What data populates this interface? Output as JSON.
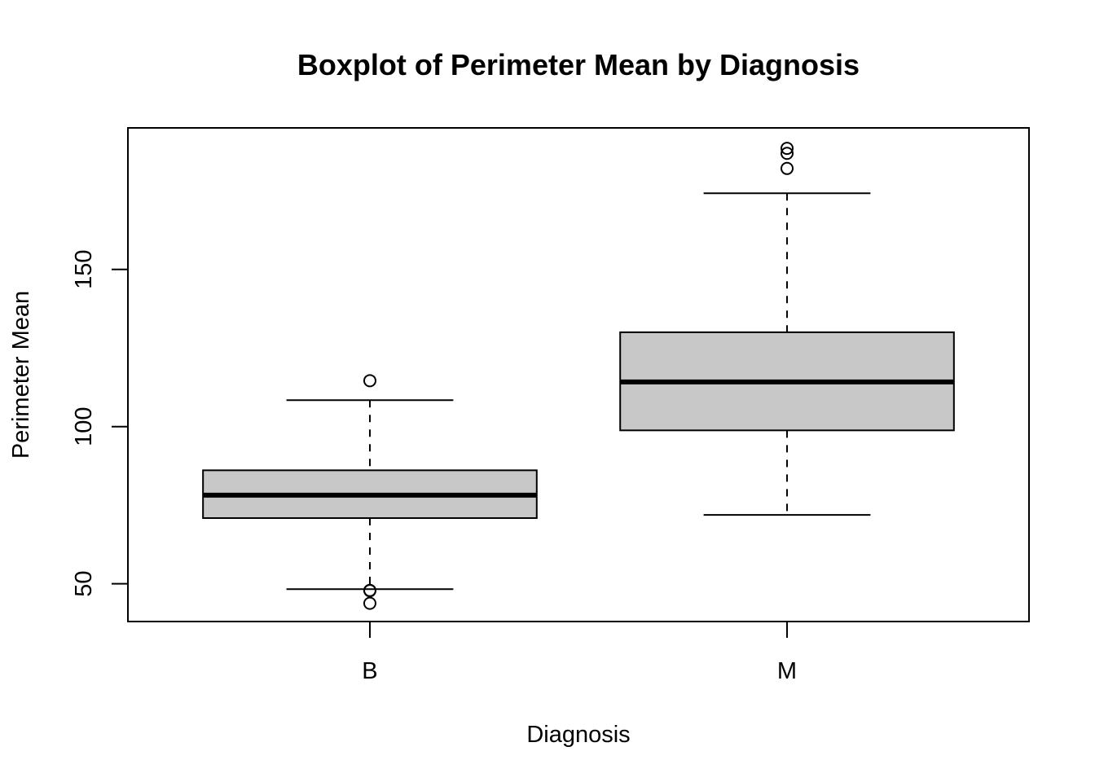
{
  "chart_data": {
    "type": "boxplot",
    "title": "Boxplot of Perimeter Mean by Diagnosis",
    "xlabel": "Diagnosis",
    "ylabel": "Perimeter Mean",
    "categories": [
      "B",
      "M"
    ],
    "ylim": [
      38,
      195
    ],
    "yticks": [
      50,
      100,
      150
    ],
    "grid": false,
    "legend": "none",
    "box_fill": "#c8c8c8",
    "line_color": "#000000",
    "boxes": [
      {
        "category": "B",
        "whisker_low": 48.3,
        "q1": 70.9,
        "median": 78.2,
        "q3": 86.1,
        "whisker_high": 108.4,
        "outliers": [
          114.6,
          47.9,
          47.8,
          43.8
        ]
      },
      {
        "category": "M",
        "whisker_low": 71.9,
        "q1": 98.8,
        "median": 114.2,
        "q3": 130.0,
        "whisker_high": 174.2,
        "outliers": [
          188.5,
          186.9,
          182.1
        ]
      }
    ]
  }
}
